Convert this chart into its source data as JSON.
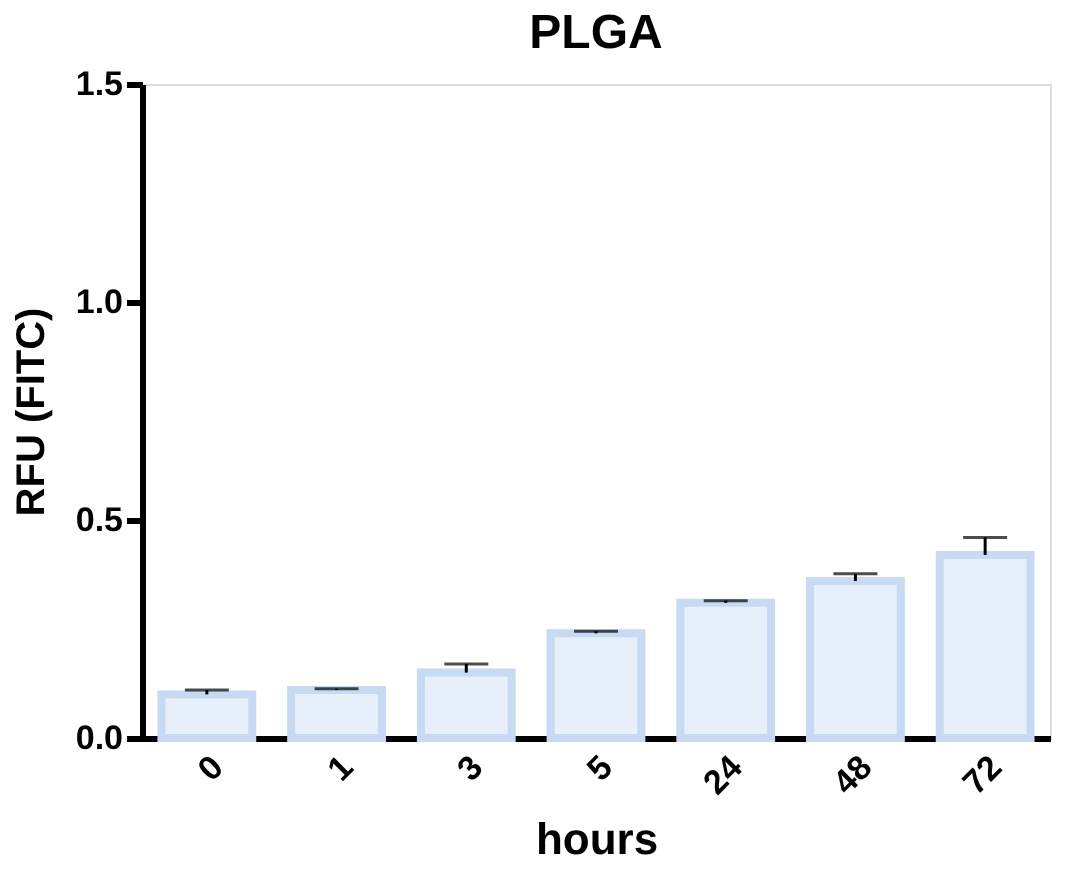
{
  "chart_data": {
    "type": "bar",
    "title": "PLGA",
    "xlabel": "hours",
    "ylabel": "RFU (FITC)",
    "categories": [
      "0",
      "1",
      "3",
      "5",
      "24",
      "48",
      "72"
    ],
    "values": [
      0.1,
      0.11,
      0.15,
      0.24,
      0.31,
      0.36,
      0.42
    ],
    "errors": [
      [
        0.1,
        0.11
      ],
      [
        0.11,
        0.113
      ],
      [
        0.15,
        0.17
      ],
      [
        0.24,
        0.245
      ],
      [
        0.31,
        0.315
      ],
      [
        0.36,
        0.377
      ],
      [
        0.42,
        0.46
      ]
    ],
    "color": "#c6dbf3",
    "ylim": [
      0,
      1.5
    ],
    "yticks": [
      {
        "value": 0,
        "label": "0.0"
      },
      0.5,
      {
        "value": 1,
        "label": "1.0"
      },
      1.5
    ],
    "grid": false
  }
}
